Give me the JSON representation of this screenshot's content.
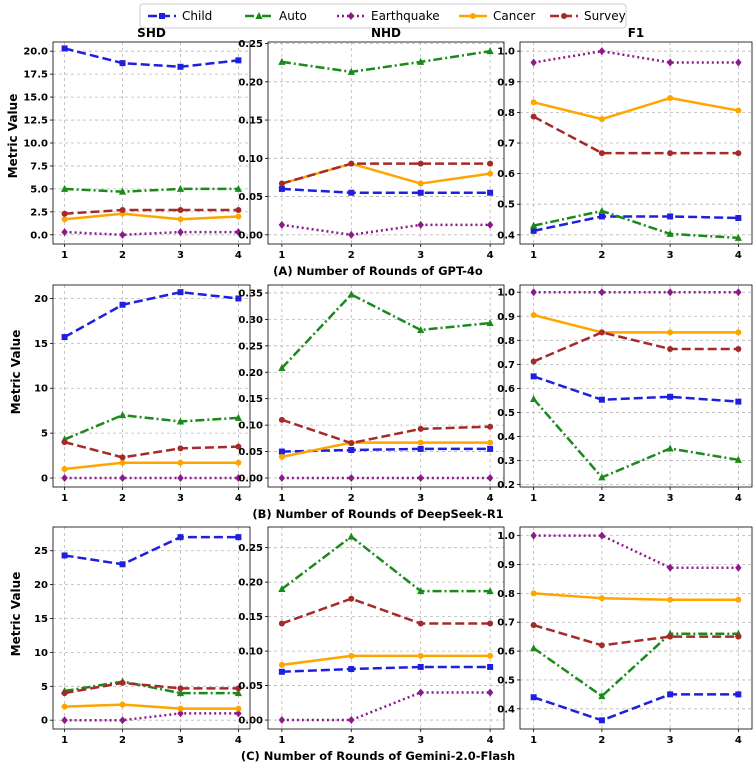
{
  "legend": [
    {
      "name": "Child",
      "color": "#1f1fe0",
      "dash": "9,4",
      "marker": "square"
    },
    {
      "name": "Auto",
      "color": "#1a8a1a",
      "dash": "9,3,2,3",
      "marker": "triangle"
    },
    {
      "name": "Earthquake",
      "color": "#8b1a8b",
      "dash": "2,3",
      "marker": "diamond"
    },
    {
      "name": "Cancer",
      "color": "#ffa500",
      "dash": "",
      "marker": "circle"
    },
    {
      "name": "Survey",
      "color": "#a52a2a",
      "dash": "9,4",
      "marker": "circle"
    }
  ],
  "ylabel": "Metric Value",
  "captions": [
    "(A) Number of Rounds of GPT-4o",
    "(B) Number of Rounds of DeepSeek-R1",
    "(C) Number of Rounds of Gemini-2.0-Flash"
  ],
  "chart_data": [
    {
      "type": "line",
      "title": "SHD",
      "x": [
        1,
        2,
        3,
        4
      ],
      "ylim": [
        -1,
        21
      ],
      "yticks": [
        "0.0",
        "2.5",
        "5.0",
        "7.5",
        "10.0",
        "12.5",
        "15.0",
        "17.5",
        "20.0"
      ],
      "ytick_values": [
        0,
        2.5,
        5,
        7.5,
        10,
        12.5,
        15,
        17.5,
        20
      ],
      "series": [
        {
          "name": "Child",
          "values": [
            20.3,
            18.7,
            18.3,
            19.0
          ]
        },
        {
          "name": "Auto",
          "values": [
            5.0,
            4.7,
            5.0,
            5.0
          ]
        },
        {
          "name": "Earthquake",
          "values": [
            0.3,
            0.0,
            0.3,
            0.3
          ]
        },
        {
          "name": "Cancer",
          "values": [
            1.7,
            2.3,
            1.7,
            2.0
          ]
        },
        {
          "name": "Survey",
          "values": [
            2.3,
            2.7,
            2.7,
            2.7
          ]
        }
      ]
    },
    {
      "type": "line",
      "title": "NHD",
      "x": [
        1,
        2,
        3,
        4
      ],
      "ylim": [
        -0.012,
        0.252
      ],
      "yticks": [
        "0.00",
        "0.05",
        "0.10",
        "0.15",
        "0.20",
        "0.25"
      ],
      "ytick_values": [
        0,
        0.05,
        0.1,
        0.15,
        0.2,
        0.25
      ],
      "series": [
        {
          "name": "Child",
          "values": [
            0.06,
            0.055,
            0.055,
            0.055
          ]
        },
        {
          "name": "Auto",
          "values": [
            0.226,
            0.213,
            0.226,
            0.24
          ]
        },
        {
          "name": "Earthquake",
          "values": [
            0.013,
            0.0,
            0.013,
            0.013
          ]
        },
        {
          "name": "Cancer",
          "values": [
            0.067,
            0.093,
            0.067,
            0.08
          ]
        },
        {
          "name": "Survey",
          "values": [
            0.067,
            0.093,
            0.093,
            0.093
          ]
        }
      ]
    },
    {
      "type": "line",
      "title": "F1",
      "x": [
        1,
        2,
        3,
        4
      ],
      "ylim": [
        0.37,
        1.03
      ],
      "yticks": [
        "0.4",
        "0.5",
        "0.6",
        "0.7",
        "0.8",
        "0.9",
        "1.0"
      ],
      "ytick_values": [
        0.4,
        0.5,
        0.6,
        0.7,
        0.8,
        0.9,
        1.0
      ],
      "series": [
        {
          "name": "Child",
          "values": [
            0.413,
            0.46,
            0.46,
            0.455
          ]
        },
        {
          "name": "Auto",
          "values": [
            0.43,
            0.478,
            0.403,
            0.39
          ]
        },
        {
          "name": "Earthquake",
          "values": [
            0.963,
            1.0,
            0.963,
            0.963
          ]
        },
        {
          "name": "Cancer",
          "values": [
            0.833,
            0.778,
            0.847,
            0.806
          ]
        },
        {
          "name": "Survey",
          "values": [
            0.786,
            0.667,
            0.667,
            0.667
          ]
        }
      ]
    },
    {
      "type": "line",
      "title": "",
      "x": [
        1,
        2,
        3,
        4
      ],
      "ylim": [
        -1,
        21.5
      ],
      "yticks": [
        "0",
        "5",
        "10",
        "15",
        "20"
      ],
      "ytick_values": [
        0,
        5,
        10,
        15,
        20
      ],
      "series": [
        {
          "name": "Child",
          "values": [
            15.7,
            19.3,
            20.7,
            20.0
          ]
        },
        {
          "name": "Auto",
          "values": [
            4.3,
            7.0,
            6.3,
            6.7
          ]
        },
        {
          "name": "Earthquake",
          "values": [
            0.0,
            0.0,
            0.0,
            0.0
          ]
        },
        {
          "name": "Cancer",
          "values": [
            1.0,
            1.7,
            1.7,
            1.7
          ]
        },
        {
          "name": "Survey",
          "values": [
            4.0,
            2.3,
            3.3,
            3.5
          ]
        }
      ]
    },
    {
      "type": "line",
      "title": "",
      "x": [
        1,
        2,
        3,
        4
      ],
      "ylim": [
        -0.017,
        0.365
      ],
      "yticks": [
        "0.00",
        "0.05",
        "0.10",
        "0.15",
        "0.20",
        "0.25",
        "0.30",
        "0.35"
      ],
      "ytick_values": [
        0,
        0.05,
        0.1,
        0.15,
        0.2,
        0.25,
        0.3,
        0.35
      ],
      "series": [
        {
          "name": "Child",
          "values": [
            0.05,
            0.053,
            0.055,
            0.055
          ]
        },
        {
          "name": "Auto",
          "values": [
            0.208,
            0.347,
            0.28,
            0.293
          ]
        },
        {
          "name": "Earthquake",
          "values": [
            0.0,
            0.0,
            0.0,
            0.0
          ]
        },
        {
          "name": "Cancer",
          "values": [
            0.04,
            0.067,
            0.067,
            0.067
          ]
        },
        {
          "name": "Survey",
          "values": [
            0.11,
            0.066,
            0.093,
            0.097
          ]
        }
      ]
    },
    {
      "type": "line",
      "title": "",
      "x": [
        1,
        2,
        3,
        4
      ],
      "ylim": [
        0.19,
        1.03
      ],
      "yticks": [
        "0.2",
        "0.3",
        "0.4",
        "0.5",
        "0.6",
        "0.7",
        "0.8",
        "0.9",
        "1.0"
      ],
      "ytick_values": [
        0.2,
        0.3,
        0.4,
        0.5,
        0.6,
        0.7,
        0.8,
        0.9,
        1.0
      ],
      "series": [
        {
          "name": "Child",
          "values": [
            0.65,
            0.553,
            0.565,
            0.545
          ]
        },
        {
          "name": "Auto",
          "values": [
            0.556,
            0.23,
            0.35,
            0.303
          ]
        },
        {
          "name": "Earthquake",
          "values": [
            1.0,
            1.0,
            1.0,
            1.0
          ]
        },
        {
          "name": "Cancer",
          "values": [
            0.905,
            0.833,
            0.833,
            0.833
          ]
        },
        {
          "name": "Survey",
          "values": [
            0.712,
            0.833,
            0.764,
            0.764
          ]
        }
      ]
    },
    {
      "type": "line",
      "title": "",
      "x": [
        1,
        2,
        3,
        4
      ],
      "ylim": [
        -1.3,
        28.5
      ],
      "yticks": [
        "0",
        "5",
        "10",
        "15",
        "20",
        "25"
      ],
      "ytick_values": [
        0,
        5,
        10,
        15,
        20,
        25
      ],
      "series": [
        {
          "name": "Child",
          "values": [
            24.3,
            23.0,
            27.0,
            27.0
          ]
        },
        {
          "name": "Auto",
          "values": [
            4.3,
            5.7,
            4.0,
            4.0
          ]
        },
        {
          "name": "Earthquake",
          "values": [
            0.0,
            0.0,
            1.0,
            1.0
          ]
        },
        {
          "name": "Cancer",
          "values": [
            2.0,
            2.3,
            1.7,
            1.7
          ]
        },
        {
          "name": "Survey",
          "values": [
            4.0,
            5.5,
            4.7,
            4.7
          ]
        }
      ]
    },
    {
      "type": "line",
      "title": "",
      "x": [
        1,
        2,
        3,
        4
      ],
      "ylim": [
        -0.013,
        0.28
      ],
      "yticks": [
        "0.00",
        "0.05",
        "0.10",
        "0.15",
        "0.20",
        "0.25"
      ],
      "ytick_values": [
        0,
        0.05,
        0.1,
        0.15,
        0.2,
        0.25
      ],
      "series": [
        {
          "name": "Child",
          "values": [
            0.07,
            0.074,
            0.077,
            0.077
          ]
        },
        {
          "name": "Auto",
          "values": [
            0.19,
            0.266,
            0.187,
            0.187
          ]
        },
        {
          "name": "Earthquake",
          "values": [
            0.0,
            0.0,
            0.04,
            0.04
          ]
        },
        {
          "name": "Cancer",
          "values": [
            0.08,
            0.093,
            0.093,
            0.093
          ]
        },
        {
          "name": "Survey",
          "values": [
            0.14,
            0.176,
            0.14,
            0.14
          ]
        }
      ]
    },
    {
      "type": "line",
      "title": "",
      "x": [
        1,
        2,
        3,
        4
      ],
      "ylim": [
        0.33,
        1.03
      ],
      "yticks": [
        "0.4",
        "0.5",
        "0.6",
        "0.7",
        "0.8",
        "0.9",
        "1.0"
      ],
      "ytick_values": [
        0.4,
        0.5,
        0.6,
        0.7,
        0.8,
        0.9,
        1.0
      ],
      "series": [
        {
          "name": "Child",
          "values": [
            0.44,
            0.36,
            0.45,
            0.45
          ]
        },
        {
          "name": "Auto",
          "values": [
            0.61,
            0.444,
            0.66,
            0.66
          ]
        },
        {
          "name": "Earthquake",
          "values": [
            1.0,
            1.0,
            0.889,
            0.889
          ]
        },
        {
          "name": "Cancer",
          "values": [
            0.8,
            0.783,
            0.778,
            0.778
          ]
        },
        {
          "name": "Survey",
          "values": [
            0.69,
            0.62,
            0.65,
            0.65
          ]
        }
      ]
    }
  ]
}
